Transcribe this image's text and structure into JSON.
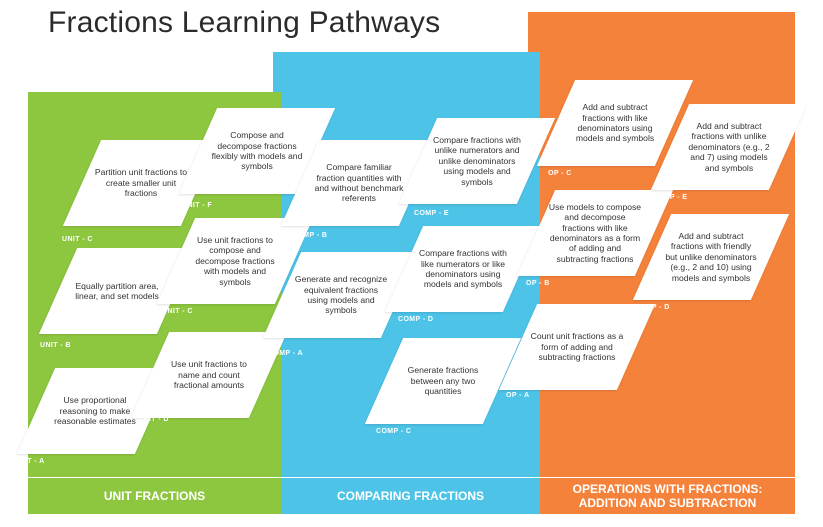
{
  "title": "Fractions Learning Pathways",
  "sections": {
    "unit": "UNIT FRACTIONS",
    "comparing": "COMPARING FRACTIONS",
    "operations_line1": "OPERATIONS WITH FRACTIONS:",
    "operations_line2": "ADDITION AND SUBTRACTION"
  },
  "colors": {
    "unit": "#8dc63f",
    "comparing": "#4dc3e8",
    "operations": "#f5823a"
  },
  "cards": {
    "unit_a": {
      "text": "Use proportional reasoning to make reasonable estimates",
      "code": "UNIT - A"
    },
    "unit_b": {
      "text": "Equally partition area, linear, and set models",
      "code": "UNIT - B"
    },
    "unit_c1": {
      "text": "Partition unit fractions to create smaller unit fractions",
      "code": "UNIT - C"
    },
    "unit_c2": {
      "text": "Use unit fractions to compose and decompose fractions with models and symbols",
      "code": "UNIT - C"
    },
    "unit_d": {
      "text": "Use unit fractions to name and count fractional amounts",
      "code": "UNIT - D"
    },
    "unit_f": {
      "text": "Compose and decompose fractions flexibly with models and symbols",
      "code": "UNIT - F"
    },
    "comp_a": {
      "text": "Generate and recognize equivalent fractions using models and symbols",
      "code": "COMP - A"
    },
    "comp_b": {
      "text": "Compare familiar fraction quantities with and without benchmark referents",
      "code": "COMP - B"
    },
    "comp_c": {
      "text": "Generate fractions between any two quantities",
      "code": "COMP - C"
    },
    "comp_d": {
      "text": "Compare fractions with like numerators or like denominators using models and symbols",
      "code": "COMP - D"
    },
    "comp_e": {
      "text": "Compare fractions with unlike numerators and unlike denominators using models and symbols",
      "code": "COMP - E"
    },
    "op_a": {
      "text": "Count unit fractions as a form of adding and subtracting fractions",
      "code": "OP - A"
    },
    "op_b": {
      "text": "Use models to compose and decompose fractions with like denominators as a form of adding and subtracting fractions",
      "code": "OP - B"
    },
    "op_c": {
      "text": "Add and subtract fractions with like denominators using models and symbols",
      "code": "OP - C"
    },
    "op_d": {
      "text": "Add and subtract fractions with friendly but unlike denominators (e.g., 2 and 10) using models and symbols",
      "code": "OP - D"
    },
    "op_e": {
      "text": "Add and subtract fractions with unlike denominators (e.g., 2 and 7) using models and symbols",
      "code": "OP - E"
    }
  }
}
